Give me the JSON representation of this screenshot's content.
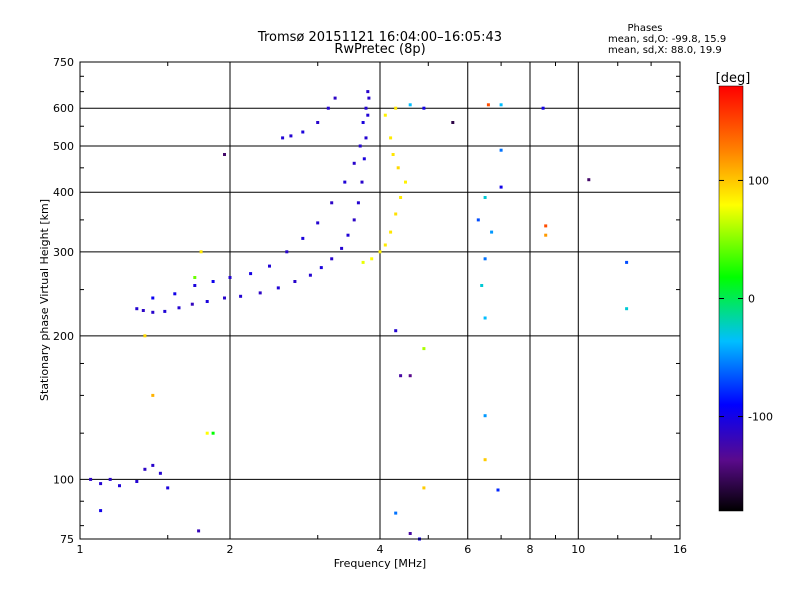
{
  "header": {
    "title_line1": "Tromsø 20151121 16:04:00–16:05:43",
    "title_line2": "RwPretec (8p)",
    "stats_title": "Phases",
    "stats_line1": "mean, sd,O: -99.8, 15.9",
    "stats_line2": "mean, sd,X:  88.0, 19.9"
  },
  "colorbar": {
    "label": "[deg]",
    "range": [
      -180,
      180
    ],
    "tick_values": [
      100,
      0,
      -100
    ],
    "tick_labels": [
      "100",
      "0",
      "-100"
    ],
    "colormap": "rainbow (black-purple-blue-cyan-green-yellow-red)"
  },
  "chart_data": {
    "type": "scatter",
    "xlabel": "Frequency [MHz]",
    "ylabel": "Stationary phase Virtual Height [km]",
    "x_scale": "log",
    "y_scale": "log",
    "xlim": [
      1,
      16
    ],
    "ylim": [
      75,
      750
    ],
    "x_ticks": [
      1,
      2,
      4,
      6,
      8,
      10,
      16
    ],
    "x_tick_labels": [
      "1",
      "2",
      "4",
      "6",
      "8",
      "10",
      "16"
    ],
    "y_ticks": [
      75,
      100,
      200,
      300,
      400,
      500,
      600,
      750
    ],
    "y_tick_labels": [
      "75",
      "100",
      "200",
      "300",
      "400",
      "500",
      "600",
      "750"
    ],
    "grid": true,
    "color_encodes": "phase [deg]",
    "series": [
      {
        "values": [
          {
            "x": 1.3,
            "y": 228,
            "phase": -110
          },
          {
            "x": 1.34,
            "y": 226,
            "phase": -115
          },
          {
            "x": 1.4,
            "y": 224,
            "phase": -112
          },
          {
            "x": 1.48,
            "y": 225,
            "phase": -108
          },
          {
            "x": 1.58,
            "y": 229,
            "phase": -110
          },
          {
            "x": 1.68,
            "y": 233,
            "phase": -118
          },
          {
            "x": 1.8,
            "y": 236,
            "phase": -105
          },
          {
            "x": 1.95,
            "y": 240,
            "phase": -112
          },
          {
            "x": 2.1,
            "y": 242,
            "phase": -110
          },
          {
            "x": 2.3,
            "y": 246,
            "phase": -115
          },
          {
            "x": 2.5,
            "y": 252,
            "phase": -108
          },
          {
            "x": 2.7,
            "y": 260,
            "phase": -112
          },
          {
            "x": 2.9,
            "y": 268,
            "phase": -110
          },
          {
            "x": 3.05,
            "y": 278,
            "phase": -105
          },
          {
            "x": 3.2,
            "y": 290,
            "phase": -112
          },
          {
            "x": 3.35,
            "y": 305,
            "phase": -110
          },
          {
            "x": 3.45,
            "y": 325,
            "phase": -108
          },
          {
            "x": 3.55,
            "y": 350,
            "phase": -115
          },
          {
            "x": 3.62,
            "y": 380,
            "phase": -110
          },
          {
            "x": 3.68,
            "y": 420,
            "phase": -112
          },
          {
            "x": 3.72,
            "y": 470,
            "phase": -105
          },
          {
            "x": 3.75,
            "y": 520,
            "phase": -110
          },
          {
            "x": 3.78,
            "y": 580,
            "phase": -108
          },
          {
            "x": 3.8,
            "y": 630,
            "phase": -112
          }
        ]
      },
      {
        "values": [
          {
            "x": 1.4,
            "y": 240,
            "phase": -95
          },
          {
            "x": 1.55,
            "y": 245,
            "phase": -100
          },
          {
            "x": 1.7,
            "y": 255,
            "phase": -105
          },
          {
            "x": 1.85,
            "y": 260,
            "phase": -98
          },
          {
            "x": 2.0,
            "y": 265,
            "phase": -110
          },
          {
            "x": 2.2,
            "y": 270,
            "phase": -102
          },
          {
            "x": 2.4,
            "y": 280,
            "phase": -108
          },
          {
            "x": 2.6,
            "y": 300,
            "phase": -112
          },
          {
            "x": 2.8,
            "y": 320,
            "phase": -105
          },
          {
            "x": 3.0,
            "y": 345,
            "phase": -110
          },
          {
            "x": 3.2,
            "y": 380,
            "phase": -115
          },
          {
            "x": 3.4,
            "y": 420,
            "phase": -108
          },
          {
            "x": 3.55,
            "y": 460,
            "phase": -112
          },
          {
            "x": 3.65,
            "y": 500,
            "phase": -110
          },
          {
            "x": 3.7,
            "y": 560,
            "phase": -105
          },
          {
            "x": 3.75,
            "y": 600,
            "phase": -110
          },
          {
            "x": 3.78,
            "y": 650,
            "phase": -112
          }
        ]
      },
      {
        "values": [
          {
            "x": 2.55,
            "y": 520,
            "phase": -108
          },
          {
            "x": 2.65,
            "y": 525,
            "phase": -110
          },
          {
            "x": 2.8,
            "y": 535,
            "phase": -105
          },
          {
            "x": 3.0,
            "y": 560,
            "phase": -112
          },
          {
            "x": 3.15,
            "y": 600,
            "phase": -110
          },
          {
            "x": 3.25,
            "y": 630,
            "phase": -115
          }
        ]
      },
      {
        "values": [
          {
            "x": 3.7,
            "y": 285,
            "phase": 75
          },
          {
            "x": 3.85,
            "y": 290,
            "phase": 80
          },
          {
            "x": 4.0,
            "y": 300,
            "phase": 85
          },
          {
            "x": 4.1,
            "y": 310,
            "phase": 88
          },
          {
            "x": 4.2,
            "y": 330,
            "phase": 90
          },
          {
            "x": 4.3,
            "y": 360,
            "phase": 92
          },
          {
            "x": 4.4,
            "y": 390,
            "phase": 88
          },
          {
            "x": 4.5,
            "y": 420,
            "phase": 85
          },
          {
            "x": 4.35,
            "y": 450,
            "phase": 95
          },
          {
            "x": 4.25,
            "y": 480,
            "phase": 90
          },
          {
            "x": 4.2,
            "y": 520,
            "phase": 88
          },
          {
            "x": 4.1,
            "y": 580,
            "phase": 85
          }
        ]
      },
      {
        "values": [
          {
            "x": 1.05,
            "y": 100,
            "phase": -115
          },
          {
            "x": 1.1,
            "y": 98,
            "phase": -110
          },
          {
            "x": 1.15,
            "y": 100,
            "phase": -112
          },
          {
            "x": 1.2,
            "y": 97,
            "phase": -108
          },
          {
            "x": 1.3,
            "y": 99,
            "phase": -110
          },
          {
            "x": 1.35,
            "y": 105,
            "phase": -115
          },
          {
            "x": 1.4,
            "y": 107,
            "phase": -112
          },
          {
            "x": 1.45,
            "y": 103,
            "phase": -110
          },
          {
            "x": 1.5,
            "y": 96,
            "phase": -105
          }
        ]
      },
      {
        "values": [
          {
            "x": 1.75,
            "y": 300,
            "phase": 90
          },
          {
            "x": 1.7,
            "y": 265,
            "phase": 45
          },
          {
            "x": 1.8,
            "y": 125,
            "phase": 80
          },
          {
            "x": 1.85,
            "y": 125,
            "phase": 20
          },
          {
            "x": 1.4,
            "y": 150,
            "phase": 110
          },
          {
            "x": 1.35,
            "y": 200,
            "phase": 95
          },
          {
            "x": 1.95,
            "y": 480,
            "phase": -150
          },
          {
            "x": 1.1,
            "y": 86,
            "phase": -100
          },
          {
            "x": 1.73,
            "y": 78,
            "phase": -120
          },
          {
            "x": 4.3,
            "y": 600,
            "phase": 90
          },
          {
            "x": 4.6,
            "y": 610,
            "phase": -40
          },
          {
            "x": 4.9,
            "y": 600,
            "phase": -100
          },
          {
            "x": 5.6,
            "y": 560,
            "phase": -160
          },
          {
            "x": 6.6,
            "y": 610,
            "phase": 150
          },
          {
            "x": 7.0,
            "y": 610,
            "phase": -40
          },
          {
            "x": 7.0,
            "y": 490,
            "phase": -60
          },
          {
            "x": 6.5,
            "y": 390,
            "phase": -30
          },
          {
            "x": 7.0,
            "y": 410,
            "phase": -100
          },
          {
            "x": 6.3,
            "y": 350,
            "phase": -70
          },
          {
            "x": 6.7,
            "y": 330,
            "phase": -50
          },
          {
            "x": 8.5,
            "y": 600,
            "phase": -100
          },
          {
            "x": 8.6,
            "y": 340,
            "phase": 150
          },
          {
            "x": 8.6,
            "y": 325,
            "phase": 120
          },
          {
            "x": 10.5,
            "y": 425,
            "phase": -150
          },
          {
            "x": 12.5,
            "y": 285,
            "phase": -70
          },
          {
            "x": 12.5,
            "y": 228,
            "phase": -30
          },
          {
            "x": 6.5,
            "y": 290,
            "phase": -60
          },
          {
            "x": 6.4,
            "y": 255,
            "phase": -30
          },
          {
            "x": 6.5,
            "y": 218,
            "phase": -40
          },
          {
            "x": 6.5,
            "y": 136,
            "phase": -50
          },
          {
            "x": 6.5,
            "y": 110,
            "phase": 100
          },
          {
            "x": 6.9,
            "y": 95,
            "phase": -80
          },
          {
            "x": 4.3,
            "y": 205,
            "phase": -110
          },
          {
            "x": 4.4,
            "y": 165,
            "phase": -130
          },
          {
            "x": 4.6,
            "y": 165,
            "phase": -140
          },
          {
            "x": 4.9,
            "y": 188,
            "phase": 60
          },
          {
            "x": 4.3,
            "y": 85,
            "phase": -60
          },
          {
            "x": 4.9,
            "y": 96,
            "phase": 100
          },
          {
            "x": 4.6,
            "y": 77,
            "phase": -130
          },
          {
            "x": 4.8,
            "y": 75,
            "phase": -100
          }
        ]
      }
    ]
  }
}
